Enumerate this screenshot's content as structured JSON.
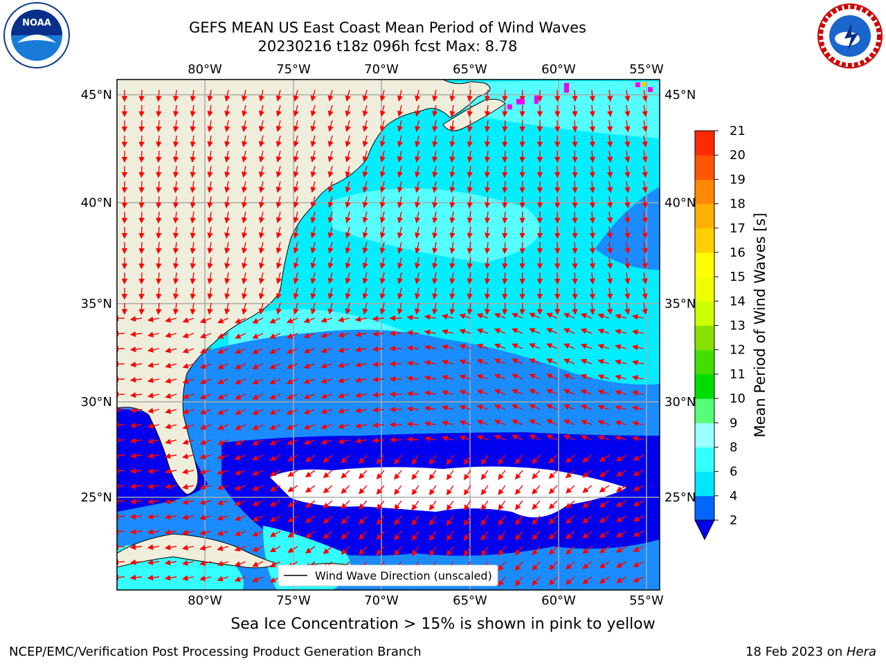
{
  "title_line1": "GEFS MEAN US East Coast Mean Period of Wind Waves",
  "title_line2": "20230216 t18z 096h fcst   Max: 8.78",
  "caption": "Sea Ice Concentration > 15% is shown in pink to yellow",
  "footer_left": "NCEP/EMC/Verification Post Processing Product Generation Branch",
  "footer_right_date": "18 Feb 2023 on ",
  "footer_right_host": "Hera",
  "logos": {
    "left": "NOAA",
    "right": "NATIONAL WEATHER SERVICE"
  },
  "map": {
    "lon_labels": [
      "80°W",
      "75°W",
      "70°W",
      "65°W",
      "60°W",
      "55°W"
    ],
    "lat_labels": [
      "45°N",
      "40°N",
      "35°N",
      "30°N",
      "25°N"
    ],
    "lon_range": [
      -85,
      -54.5
    ],
    "lat_range": [
      20,
      46
    ],
    "legend_label": "Wind Wave Direction (unscaled)"
  },
  "colorbar": {
    "title": "Mean Period of Wind Waves [s]",
    "ticks": [
      "2",
      "4",
      "6",
      "8",
      "9",
      "10",
      "11",
      "12",
      "13",
      "14",
      "15",
      "16",
      "17",
      "18",
      "19",
      "20",
      "21"
    ],
    "colors": [
      "#0066ff",
      "#00e6ff",
      "#33ffff",
      "#99ffff",
      "#55ff77",
      "#00dd00",
      "#44dd00",
      "#88e000",
      "#ccff00",
      "#eeff00",
      "#ffff00",
      "#ffd000",
      "#ffb000",
      "#ff8800",
      "#ff5500",
      "#ff2a00"
    ],
    "underflow_color": "#0000ee"
  },
  "colors": {
    "land": "#efeedd",
    "grid": "#aaaaaa",
    "arrow": "#ff0000",
    "ice": "#ee00ee"
  }
}
